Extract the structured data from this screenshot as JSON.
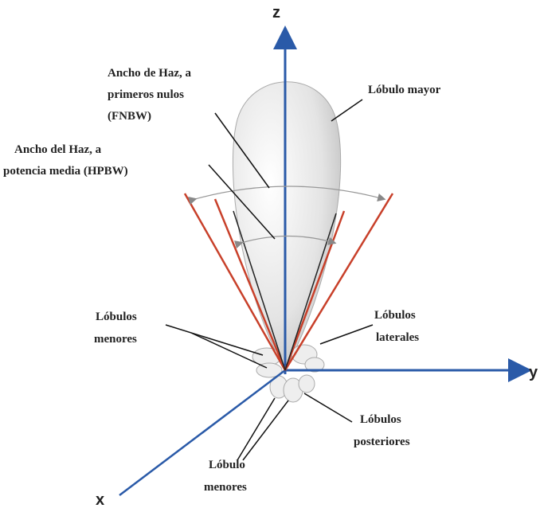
{
  "axes": {
    "z": "z",
    "y": "y",
    "x": "x"
  },
  "labels": [
    {
      "lines": [
        "Ancho de Haz, a",
        "primeros nulos",
        "(FNBW)"
      ]
    },
    {
      "lines": [
        "Lóbulo mayor"
      ]
    },
    {
      "lines": [
        "Ancho del Haz, a",
        "potencia media (HPBW)"
      ]
    },
    {
      "lines": [
        "Lóbulos",
        "menores"
      ]
    },
    {
      "lines": [
        "Lóbulos",
        "laterales"
      ]
    },
    {
      "lines": [
        "Lóbulos",
        "posteriores"
      ]
    },
    {
      "lines": [
        "Lóbulo",
        "menores"
      ]
    }
  ]
}
